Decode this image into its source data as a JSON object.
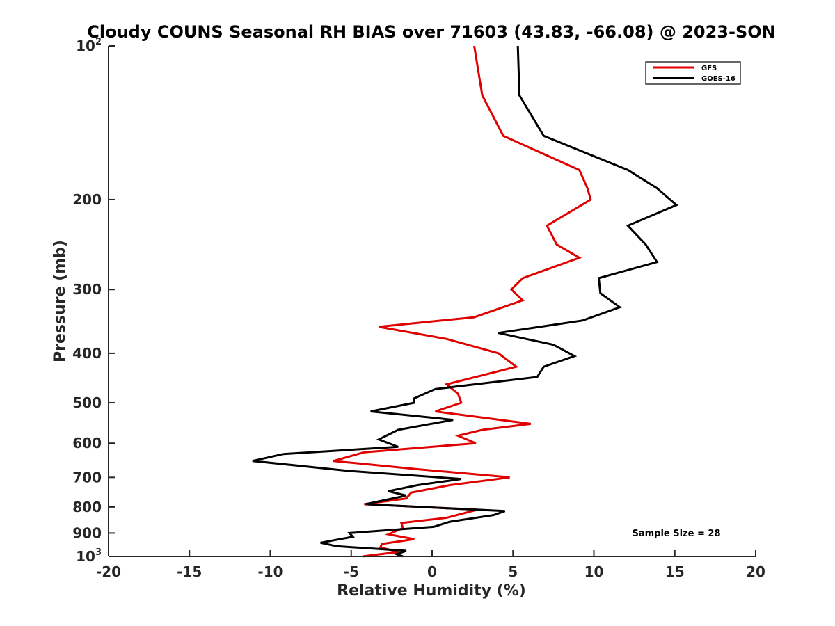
{
  "chart_data": {
    "type": "line",
    "title": "Cloudy COUNS Seasonal RH BIAS over 71603 (43.83, -66.08) @ 2023-SON",
    "xlabel": "Relative Humidity (%)",
    "ylabel": "Pressure (mb)",
    "xlim": [
      -20,
      20
    ],
    "ylim": [
      100,
      1000
    ],
    "yscale": "log",
    "yreversed": true,
    "xticks": [
      {
        "value": -20,
        "label": "-20"
      },
      {
        "value": -15,
        "label": "-15"
      },
      {
        "value": -10,
        "label": "-10"
      },
      {
        "value": -5,
        "label": "-5"
      },
      {
        "value": 0,
        "label": "0"
      },
      {
        "value": 5,
        "label": "5"
      },
      {
        "value": 10,
        "label": "10"
      },
      {
        "value": 15,
        "label": "15"
      },
      {
        "value": 20,
        "label": "20"
      }
    ],
    "yticks": [
      {
        "value": 100,
        "base": "10",
        "exp": "2"
      },
      {
        "value": 200,
        "label": "200"
      },
      {
        "value": 300,
        "label": "300"
      },
      {
        "value": 400,
        "label": "400"
      },
      {
        "value": 500,
        "label": "500"
      },
      {
        "value": 600,
        "label": "600"
      },
      {
        "value": 700,
        "label": "700"
      },
      {
        "value": 800,
        "label": "800"
      },
      {
        "value": 900,
        "label": "900"
      },
      {
        "value": 1000,
        "base": "10",
        "exp": "3"
      }
    ],
    "grid": false,
    "legend_position": "top-right",
    "annotation": "Sample Size = 28",
    "series": [
      {
        "name": "GFS",
        "color": "#e00000",
        "points": [
          [
            2.6,
            100
          ],
          [
            3.1,
            125
          ],
          [
            4.4,
            150
          ],
          [
            9.1,
            175
          ],
          [
            9.6,
            190
          ],
          [
            9.8,
            200
          ],
          [
            7.1,
            225
          ],
          [
            7.7,
            245
          ],
          [
            9.1,
            260
          ],
          [
            5.6,
            285
          ],
          [
            4.9,
            300
          ],
          [
            5.6,
            315
          ],
          [
            2.6,
            340
          ],
          [
            -3.3,
            355
          ],
          [
            0.9,
            375
          ],
          [
            4.1,
            400
          ],
          [
            5.2,
            425
          ],
          [
            0.9,
            460
          ],
          [
            1.6,
            480
          ],
          [
            1.8,
            500
          ],
          [
            0.2,
            520
          ],
          [
            6.1,
            550
          ],
          [
            3.1,
            565
          ],
          [
            1.6,
            580
          ],
          [
            2.7,
            600
          ],
          [
            -4.2,
            625
          ],
          [
            -6.1,
            650
          ],
          [
            -0.8,
            675
          ],
          [
            4.8,
            700
          ],
          [
            1.1,
            725
          ],
          [
            -1.3,
            750
          ],
          [
            -1.6,
            770
          ],
          [
            -4.2,
            790
          ],
          [
            2.8,
            810
          ],
          [
            0.9,
            840
          ],
          [
            -1.9,
            860
          ],
          [
            -1.8,
            880
          ],
          [
            -2.7,
            905
          ],
          [
            -1.1,
            925
          ],
          [
            -3.1,
            945
          ],
          [
            -3.2,
            960
          ],
          [
            -2.1,
            980
          ],
          [
            -4.3,
            1000
          ]
        ]
      },
      {
        "name": "GOES-16",
        "color": "#000000",
        "points": [
          [
            5.3,
            100
          ],
          [
            5.4,
            125
          ],
          [
            6.9,
            150
          ],
          [
            12.1,
            175
          ],
          [
            13.9,
            190
          ],
          [
            15.1,
            205
          ],
          [
            12.1,
            225
          ],
          [
            13.2,
            245
          ],
          [
            13.9,
            265
          ],
          [
            10.3,
            285
          ],
          [
            10.4,
            305
          ],
          [
            11.6,
            325
          ],
          [
            9.3,
            345
          ],
          [
            4.1,
            365
          ],
          [
            7.5,
            385
          ],
          [
            8.8,
            405
          ],
          [
            6.9,
            425
          ],
          [
            6.5,
            445
          ],
          [
            0.2,
            470
          ],
          [
            -1.1,
            490
          ],
          [
            -1.1,
            500
          ],
          [
            -3.8,
            520
          ],
          [
            1.3,
            540
          ],
          [
            -2.1,
            565
          ],
          [
            -3.3,
            590
          ],
          [
            -2.1,
            610
          ],
          [
            -9.2,
            630
          ],
          [
            -11.1,
            650
          ],
          [
            -5.1,
            680
          ],
          [
            1.8,
            705
          ],
          [
            -0.9,
            725
          ],
          [
            -2.7,
            745
          ],
          [
            -1.6,
            760
          ],
          [
            -4.1,
            790
          ],
          [
            4.5,
            815
          ],
          [
            3.8,
            830
          ],
          [
            1.1,
            855
          ],
          [
            0.1,
            875
          ],
          [
            -5.1,
            900
          ],
          [
            -4.9,
            915
          ],
          [
            -6.9,
            940
          ],
          [
            -5.9,
            955
          ],
          [
            -1.6,
            975
          ],
          [
            -2.2,
            990
          ],
          [
            -1.8,
            1000
          ]
        ]
      }
    ]
  }
}
